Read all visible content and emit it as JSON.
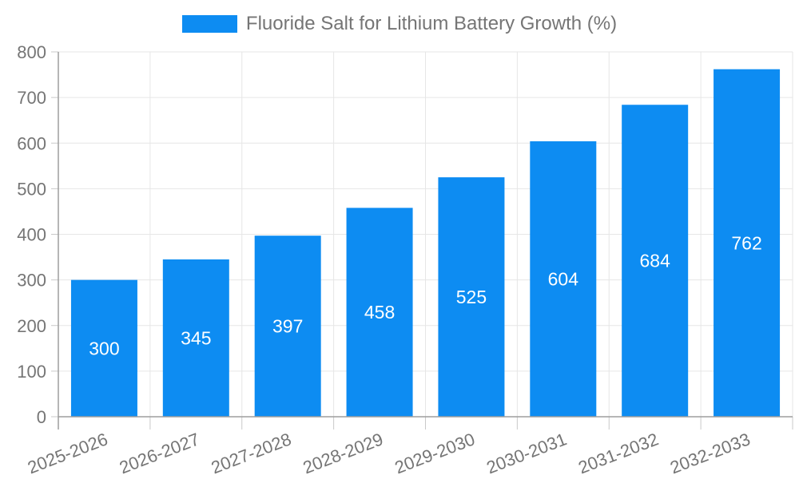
{
  "chart_data": {
    "type": "bar",
    "title": "",
    "legend": [
      "Fluoride Salt for Lithium Battery Growth (%)"
    ],
    "legend_position": "top-center",
    "categories": [
      "2025-2026",
      "2026-2027",
      "2027-2028",
      "2028-2029",
      "2029-2030",
      "2030-2031",
      "2031-2032",
      "2032-2033"
    ],
    "values": [
      300,
      345,
      397,
      458,
      525,
      604,
      684,
      762
    ],
    "bar_labels": [
      "300",
      "345",
      "397",
      "458",
      "525",
      "604",
      "684",
      "762"
    ],
    "xlabel": "",
    "ylabel": "",
    "ylim": [
      0,
      800
    ],
    "ytick_step": 100,
    "ytick_labels": [
      "0",
      "100",
      "200",
      "300",
      "400",
      "500",
      "600",
      "700",
      "800"
    ],
    "grid": true,
    "x_label_rotation_deg": -21,
    "colors": {
      "bar": "#0d8cf2",
      "bar_label_text": "#ffffff",
      "axis_text": "#757575",
      "legend_text": "#757575",
      "gridline": "#e6e6e6",
      "axis_line": "#9e9e9e",
      "tick": "#c9c9c9",
      "background": "#ffffff"
    }
  }
}
